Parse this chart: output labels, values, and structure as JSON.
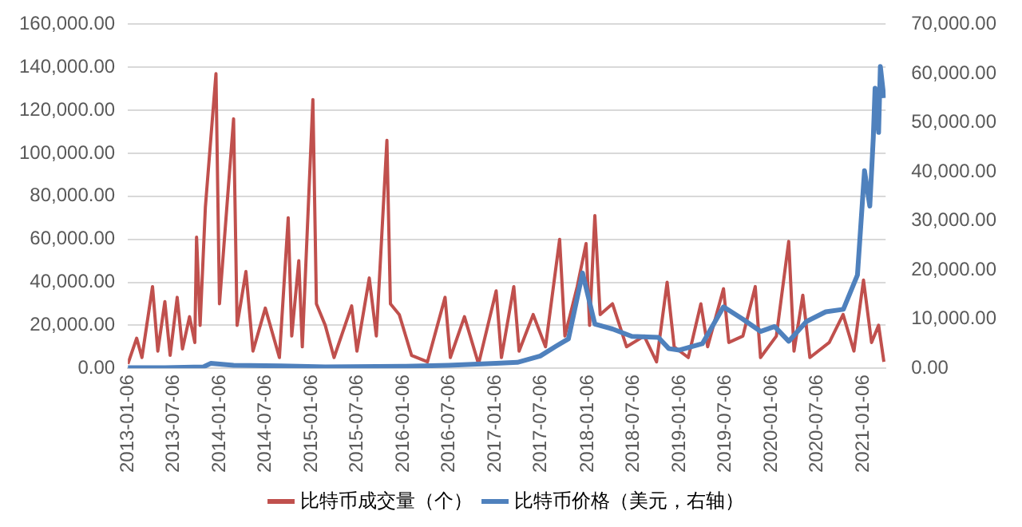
{
  "chart_data": {
    "type": "line",
    "legend": "bottom",
    "grid": "y",
    "marker": "none",
    "xlim": [
      "2013-01-06",
      "2021-04-04"
    ],
    "xticks": [
      "2013-01-06",
      "2013-07-06",
      "2014-01-06",
      "2014-07-06",
      "2015-01-06",
      "2015-07-06",
      "2016-01-06",
      "2016-07-06",
      "2017-01-06",
      "2017-07-06",
      "2018-01-06",
      "2018-07-06",
      "2019-01-06",
      "2019-07-06",
      "2020-01-06",
      "2020-07-06",
      "2021-01-06"
    ],
    "ylim": [
      0,
      160000
    ],
    "yticks": [
      {
        "value": 0,
        "label": "0.00"
      },
      {
        "value": 20000,
        "label": "20,000.00"
      },
      {
        "value": 40000,
        "label": "40,000.00"
      },
      {
        "value": 60000,
        "label": "60,000.00"
      },
      {
        "value": 80000,
        "label": "80,000.00"
      },
      {
        "value": 100000,
        "label": "100,000.00"
      },
      {
        "value": 120000,
        "label": "120,000.00"
      },
      {
        "value": 140000,
        "label": "140,000.00"
      },
      {
        "value": 160000,
        "label": "160,000.00"
      }
    ],
    "y2lim": [
      0,
      70000
    ],
    "y2ticks": [
      {
        "value": 0,
        "label": "0.00"
      },
      {
        "value": 10000,
        "label": "10,000.00"
      },
      {
        "value": 20000,
        "label": "20,000.00"
      },
      {
        "value": 30000,
        "label": "30,000.00"
      },
      {
        "value": 40000,
        "label": "40,000.00"
      },
      {
        "value": 50000,
        "label": "50,000.00"
      },
      {
        "value": 60000,
        "label": "60,000.00"
      },
      {
        "value": 70000,
        "label": "70,000.00"
      }
    ],
    "series": [
      {
        "name": "比特币成交量（个）",
        "color": "#c0504d",
        "x": [
          "2013-01-06",
          "2013-02-10",
          "2013-03-03",
          "2013-04-14",
          "2013-05-05",
          "2013-06-02",
          "2013-06-23",
          "2013-07-21",
          "2013-08-11",
          "2013-09-08",
          "2013-09-29",
          "2013-10-06",
          "2013-10-20",
          "2013-11-10",
          "2013-12-22",
          "2014-01-05",
          "2014-02-02",
          "2014-03-02",
          "2014-03-16",
          "2014-04-20",
          "2014-05-18",
          "2014-07-06",
          "2014-08-31",
          "2014-10-05",
          "2014-10-19",
          "2014-11-16",
          "2014-11-30",
          "2015-01-11",
          "2015-01-25",
          "2015-03-01",
          "2015-04-05",
          "2015-06-14",
          "2015-07-05",
          "2015-08-23",
          "2015-09-20",
          "2015-11-01",
          "2015-11-15",
          "2015-12-20",
          "2016-02-07",
          "2016-04-10",
          "2016-06-19",
          "2016-07-10",
          "2016-09-04",
          "2016-10-30",
          "2017-01-08",
          "2017-01-29",
          "2017-03-19",
          "2017-04-09",
          "2017-06-04",
          "2017-07-23",
          "2017-09-17",
          "2017-10-08",
          "2017-11-26",
          "2017-12-31",
          "2018-01-14",
          "2018-02-04",
          "2018-02-25",
          "2018-04-15",
          "2018-06-10",
          "2018-08-19",
          "2018-10-07",
          "2018-11-18",
          "2018-12-16",
          "2019-02-10",
          "2019-04-01",
          "2019-04-28",
          "2019-06-30",
          "2019-07-21",
          "2019-09-15",
          "2019-11-03",
          "2019-11-24",
          "2020-01-26",
          "2020-03-15",
          "2020-04-05",
          "2020-05-10",
          "2020-06-07",
          "2020-08-23",
          "2020-10-17",
          "2020-11-29",
          "2021-01-06",
          "2021-02-07",
          "2021-03-07",
          "2021-03-28"
        ],
        "values": [
          2000,
          14000,
          5000,
          38000,
          8000,
          31000,
          6000,
          33000,
          9000,
          24000,
          12000,
          61000,
          20000,
          75000,
          137000,
          30000,
          73000,
          116000,
          20000,
          45000,
          8000,
          28000,
          5000,
          70000,
          15000,
          50000,
          10000,
          125000,
          30000,
          20000,
          5000,
          29000,
          8000,
          42000,
          15000,
          106000,
          30000,
          25000,
          6000,
          3000,
          33000,
          5000,
          24000,
          2000,
          36000,
          5000,
          38000,
          8000,
          25000,
          10000,
          60000,
          15000,
          38000,
          58000,
          20000,
          71000,
          25000,
          30000,
          10000,
          15000,
          3000,
          40000,
          10000,
          5000,
          30000,
          10000,
          37000,
          12000,
          15000,
          38000,
          5000,
          15000,
          59000,
          8000,
          34000,
          5000,
          12000,
          25000,
          8000,
          41000,
          12000,
          20000,
          3000
        ]
      },
      {
        "name": "比特币价格（美元，右轴）",
        "color": "#4f81bd",
        "axis": "y2",
        "x": [
          "2013-01-06",
          "2013-06-02",
          "2013-11-03",
          "2013-12-01",
          "2014-03-02",
          "2014-09-07",
          "2015-03-01",
          "2016-01-03",
          "2016-07-03",
          "2017-01-08",
          "2017-04-02",
          "2017-07-02",
          "2017-09-03",
          "2017-10-22",
          "2017-12-17",
          "2018-02-04",
          "2018-04-15",
          "2018-07-01",
          "2018-10-14",
          "2018-11-25",
          "2019-01-06",
          "2019-04-07",
          "2019-06-30",
          "2019-09-15",
          "2019-11-24",
          "2020-01-19",
          "2020-03-15",
          "2020-05-24",
          "2020-08-09",
          "2020-10-18",
          "2020-12-13",
          "2021-01-10",
          "2021-01-31",
          "2021-02-14",
          "2021-02-21",
          "2021-03-07",
          "2021-03-14",
          "2021-03-28"
        ],
        "values": [
          100,
          100,
          300,
          1000,
          600,
          500,
          300,
          400,
          600,
          1000,
          1200,
          2500,
          4500,
          6000,
          19400,
          9000,
          8000,
          6500,
          6300,
          4000,
          3700,
          5000,
          12500,
          10000,
          7500,
          8500,
          5500,
          9500,
          11500,
          12000,
          19000,
          40200,
          33000,
          47000,
          57000,
          48000,
          61400,
          55000
        ]
      }
    ]
  }
}
